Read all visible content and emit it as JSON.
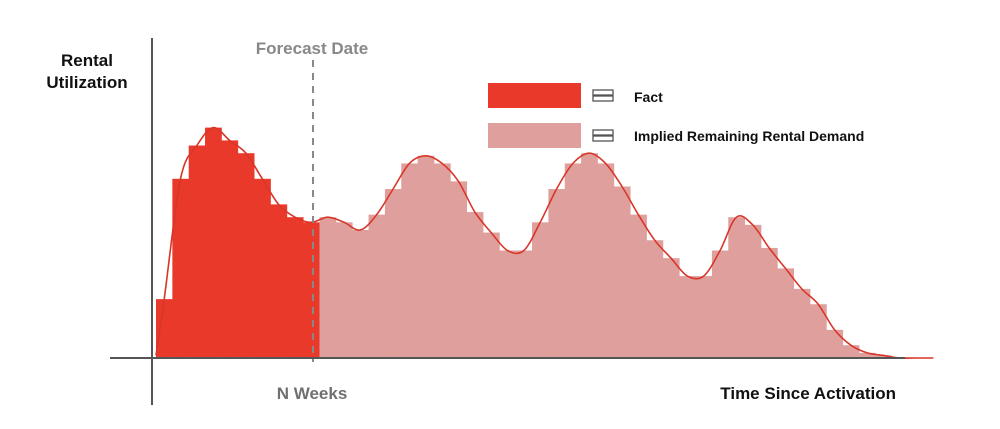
{
  "chart_data": {
    "type": "bar",
    "ylabel_line1": "Rental",
    "ylabel_line2": "Utilization",
    "xlabel": "Time Since Activation",
    "forecast_label": "Forecast Date",
    "forecast_tick_label": "N Weeks",
    "forecast_at": 10,
    "ylim": [
      0,
      10
    ],
    "xlim": [
      0,
      48
    ],
    "legend": {
      "position": "top-right",
      "entries": [
        {
          "label": "Fact",
          "color": "#e8392b"
        },
        {
          "label": "Implied Remaining Rental Demand",
          "color": "#dfa09d"
        }
      ]
    },
    "series": [
      {
        "name": "Fact",
        "color": "#e8392b",
        "values": [
          2.3,
          7.0,
          8.3,
          9.0,
          8.5,
          8.0,
          7.0,
          6.0,
          5.5,
          5.3
        ]
      },
      {
        "name": "Implied Remaining Rental Demand",
        "color": "#dfa09d",
        "values": [
          5.5,
          5.3,
          5.0,
          5.6,
          6.6,
          7.6,
          7.9,
          7.6,
          6.9,
          5.7,
          4.9,
          4.2,
          4.2,
          5.3,
          6.6,
          7.6,
          8.0,
          7.6,
          6.7,
          5.6,
          4.6,
          3.9,
          3.2,
          3.2,
          4.2,
          5.5,
          5.2,
          4.3,
          3.5,
          2.7,
          2.1,
          1.1,
          0.5,
          0.2,
          0.1,
          0.0,
          0.0,
          0.0
        ],
        "start_index": 10
      }
    ],
    "trend_color": "#d8362a",
    "axis_color": "#555555",
    "forecast_line_color": "#888888"
  }
}
